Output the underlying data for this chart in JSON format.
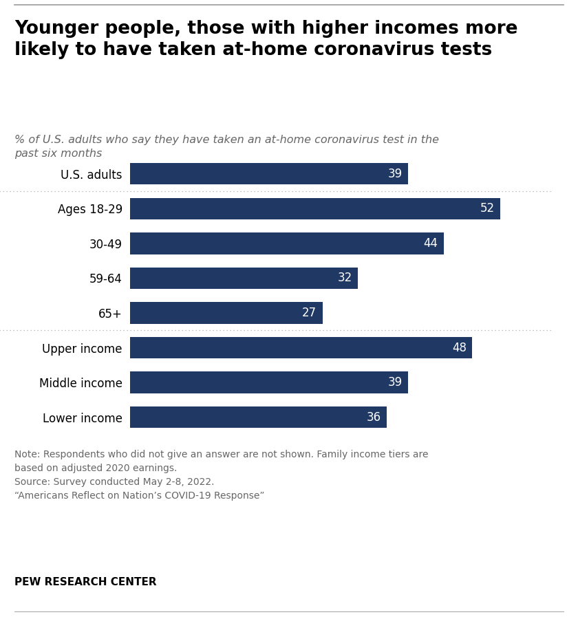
{
  "title": "Younger people, those with higher incomes more\nlikely to have taken at-home coronavirus tests",
  "subtitle": "% of U.S. adults who say they have taken an at-home coronavirus test in the\npast six months",
  "categories": [
    "U.S. adults",
    "Ages 18-29",
    "30-49",
    "59-64",
    "65+",
    "Upper income",
    "Middle income",
    "Lower income"
  ],
  "values": [
    39,
    52,
    44,
    32,
    27,
    48,
    39,
    36
  ],
  "bar_color": "#1f3864",
  "label_color": "#ffffff",
  "background_color": "#ffffff",
  "xlim": [
    0,
    58
  ],
  "note_line1": "Note: Respondents who did not give an answer are not shown. Family income tiers are",
  "note_line2": "based on adjusted 2020 earnings.",
  "note_line3": "Source: Survey conducted May 2-8, 2022.",
  "note_line4": "“Americans Reflect on Nation’s COVID-19 Response”",
  "footer": "PEW RESEARCH CENTER",
  "title_fontsize": 19,
  "subtitle_fontsize": 11.5,
  "label_fontsize": 12,
  "category_fontsize": 12,
  "note_fontsize": 10,
  "footer_fontsize": 11,
  "bar_height": 0.62,
  "divider_color": "#aaaaaa",
  "top_line_color": "#999999",
  "bottom_line_color": "#aaaaaa"
}
